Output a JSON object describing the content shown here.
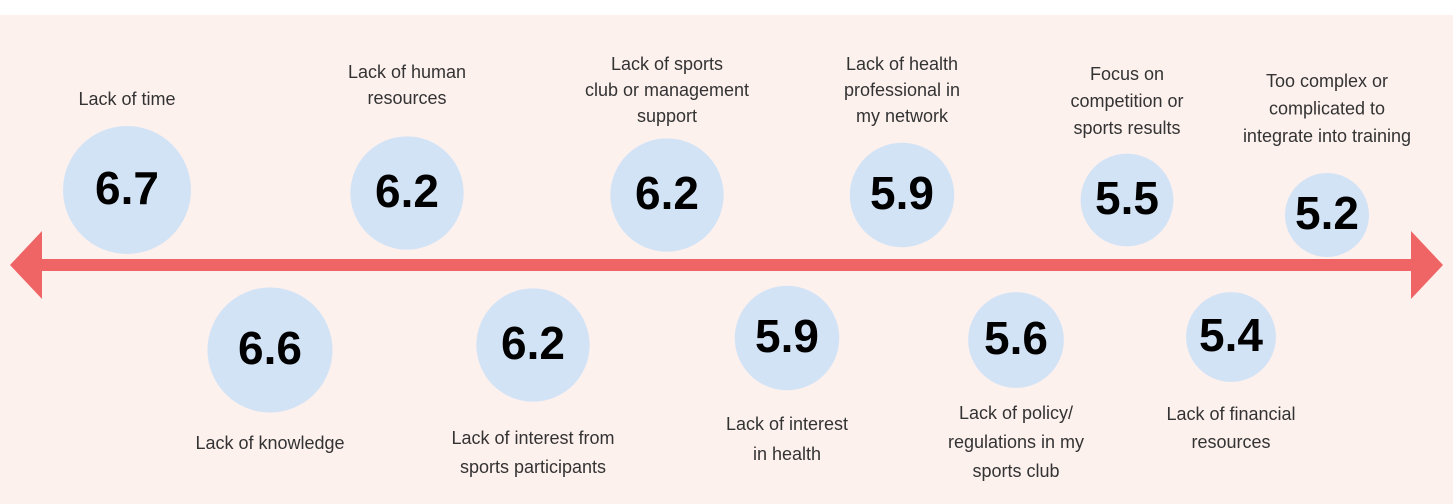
{
  "chart_data": {
    "type": "bubble",
    "categories": [
      [
        "Lack of time"
      ],
      [
        "Lack of knowledge"
      ],
      [
        "Lack of human",
        "resources"
      ],
      [
        "Lack of interest from",
        "sports participants"
      ],
      [
        "Lack of sports",
        "club or management",
        "support"
      ],
      [
        "Lack of interest",
        "in health"
      ],
      [
        "Lack of health",
        "professional in",
        "my network"
      ],
      [
        "Lack of policy/",
        "regulations in my",
        "sports club"
      ],
      [
        "Focus on",
        "competition or",
        "sports results"
      ],
      [
        "Lack of financial",
        "resources"
      ],
      [
        "Too complex or",
        "complicated to",
        "integrate into training"
      ]
    ],
    "values": [
      6.7,
      6.6,
      6.2,
      6.2,
      6.2,
      5.9,
      5.9,
      5.6,
      5.5,
      5.4,
      5.2
    ],
    "color": "#d3e3f6",
    "axis_color": "#ef6464"
  }
}
